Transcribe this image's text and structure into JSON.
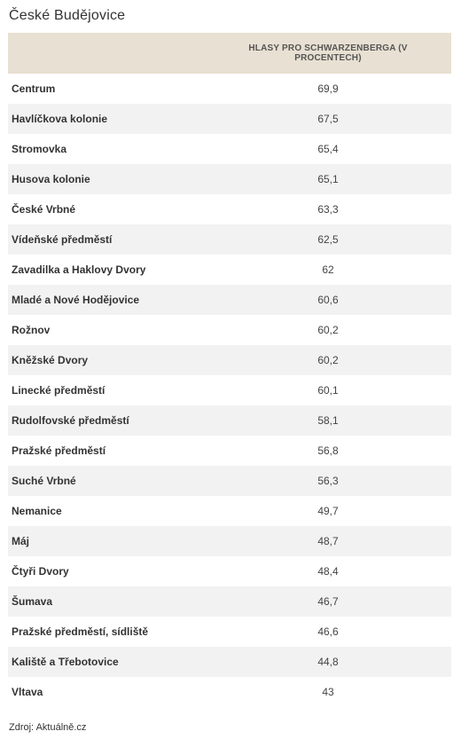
{
  "title": "České Budějovice",
  "table": {
    "header": "HLASY PRO SCHWARZENBERGA (V PROCENTECH)",
    "rows": [
      {
        "name": "Centrum",
        "value": "69,9"
      },
      {
        "name": "Havlíčkova kolonie",
        "value": "67,5"
      },
      {
        "name": "Stromovka",
        "value": "65,4"
      },
      {
        "name": "Husova kolonie",
        "value": "65,1"
      },
      {
        "name": "České Vrbné",
        "value": "63,3"
      },
      {
        "name": "Vídeňské předměstí",
        "value": "62,5"
      },
      {
        "name": "Zavadilka a Haklovy Dvory",
        "value": "62"
      },
      {
        "name": "Mladé a Nové Hodějovice",
        "value": "60,6"
      },
      {
        "name": "Rožnov",
        "value": "60,2"
      },
      {
        "name": "Kněžské Dvory",
        "value": "60,2"
      },
      {
        "name": "Linecké předměstí",
        "value": "60,1"
      },
      {
        "name": "Rudolfovské předměstí",
        "value": "58,1"
      },
      {
        "name": "Pražské předměstí",
        "value": "56,8"
      },
      {
        "name": "Suché Vrbné",
        "value": "56,3"
      },
      {
        "name": "Nemanice",
        "value": "49,7"
      },
      {
        "name": "Máj",
        "value": "48,7"
      },
      {
        "name": "Čtyři Dvory",
        "value": "48,4"
      },
      {
        "name": "Šumava",
        "value": "46,7"
      },
      {
        "name": "Pražské předměstí, sídliště",
        "value": "46,6"
      },
      {
        "name": "Kaliště a Třebotovice",
        "value": "44,8"
      },
      {
        "name": "Vltava",
        "value": "43"
      }
    ]
  },
  "source": "Zdroj: Aktuálně.cz"
}
